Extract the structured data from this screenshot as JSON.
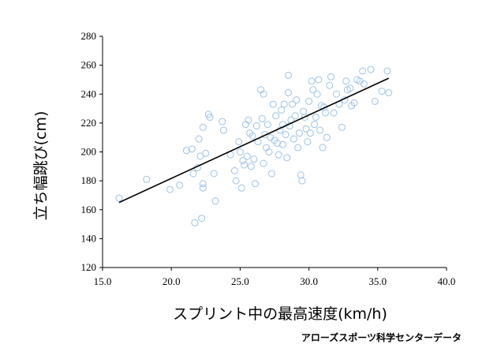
{
  "chart_data": {
    "type": "scatter",
    "title": "",
    "xlabel": "スプリント中の最高速度(km/h)",
    "ylabel": "立ち幅跳び(cm)",
    "source": "アローズスポーツ科学センターデータ",
    "xlim": [
      15.0,
      40.0
    ],
    "ylim": [
      120,
      280
    ],
    "x_ticks": [
      "15.0",
      "20.0",
      "25.0",
      "30.0",
      "35.0",
      "40.0"
    ],
    "y_ticks": [
      "120",
      "140",
      "160",
      "180",
      "200",
      "220",
      "240",
      "260",
      "280"
    ],
    "grid": false,
    "marker_color": "#9dc3e6",
    "trendline_color": "#000000",
    "trendline": {
      "x": [
        16.2,
        35.8
      ],
      "y": [
        165,
        251
      ]
    },
    "points": [
      [
        16.2,
        168
      ],
      [
        18.2,
        181
      ],
      [
        19.9,
        174
      ],
      [
        20.6,
        177
      ],
      [
        21.1,
        201
      ],
      [
        21.5,
        202
      ],
      [
        21.6,
        185
      ],
      [
        21.9,
        189
      ],
      [
        21.7,
        151
      ],
      [
        22.1,
        197
      ],
      [
        22.2,
        154
      ],
      [
        22.3,
        178
      ],
      [
        22.3,
        175
      ],
      [
        22.5,
        199
      ],
      [
        22.7,
        226
      ],
      [
        22.8,
        224
      ],
      [
        23.1,
        185
      ],
      [
        23.2,
        166
      ],
      [
        23.7,
        221
      ],
      [
        23.8,
        215
      ],
      [
        22.3,
        217
      ],
      [
        22.0,
        209
      ],
      [
        24.3,
        198
      ],
      [
        24.6,
        187
      ],
      [
        24.7,
        180
      ],
      [
        24.9,
        207
      ],
      [
        25.0,
        200
      ],
      [
        25.1,
        175
      ],
      [
        25.2,
        194
      ],
      [
        25.3,
        191
      ],
      [
        25.4,
        219
      ],
      [
        25.5,
        197
      ],
      [
        25.6,
        222
      ],
      [
        25.7,
        213
      ],
      [
        25.8,
        190
      ],
      [
        25.9,
        211
      ],
      [
        26.0,
        195
      ],
      [
        26.1,
        178
      ],
      [
        26.2,
        218
      ],
      [
        26.3,
        207
      ],
      [
        26.5,
        243
      ],
      [
        26.6,
        223
      ],
      [
        26.7,
        240
      ],
      [
        26.7,
        192
      ],
      [
        26.8,
        212
      ],
      [
        26.9,
        203
      ],
      [
        27.0,
        219
      ],
      [
        27.1,
        200
      ],
      [
        27.2,
        210
      ],
      [
        27.3,
        185
      ],
      [
        27.4,
        233
      ],
      [
        27.5,
        208
      ],
      [
        27.6,
        225
      ],
      [
        27.7,
        206
      ],
      [
        27.8,
        198
      ],
      [
        27.9,
        215
      ],
      [
        28.0,
        229
      ],
      [
        28.1,
        205
      ],
      [
        28.1,
        219
      ],
      [
        28.2,
        233
      ],
      [
        28.3,
        212
      ],
      [
        28.4,
        196
      ],
      [
        28.5,
        241
      ],
      [
        28.5,
        253
      ],
      [
        28.6,
        218
      ],
      [
        28.7,
        222
      ],
      [
        28.8,
        233
      ],
      [
        28.9,
        209
      ],
      [
        29.0,
        225
      ],
      [
        29.1,
        236
      ],
      [
        29.2,
        203
      ],
      [
        29.3,
        213
      ],
      [
        29.4,
        184
      ],
      [
        29.5,
        180
      ],
      [
        29.6,
        228
      ],
      [
        29.7,
        224
      ],
      [
        29.8,
        216
      ],
      [
        29.9,
        207
      ],
      [
        30.0,
        235
      ],
      [
        30.1,
        213
      ],
      [
        30.2,
        249
      ],
      [
        30.3,
        243
      ],
      [
        30.4,
        219
      ],
      [
        30.5,
        224
      ],
      [
        30.6,
        240
      ],
      [
        30.7,
        250
      ],
      [
        30.8,
        215
      ],
      [
        30.9,
        232
      ],
      [
        31.0,
        203
      ],
      [
        31.1,
        231
      ],
      [
        31.2,
        227
      ],
      [
        31.3,
        210
      ],
      [
        31.5,
        246
      ],
      [
        31.6,
        252
      ],
      [
        31.8,
        227
      ],
      [
        32.0,
        240
      ],
      [
        32.2,
        233
      ],
      [
        32.4,
        217
      ],
      [
        32.6,
        236
      ],
      [
        32.7,
        249
      ],
      [
        32.8,
        243
      ],
      [
        33.0,
        244
      ],
      [
        33.1,
        232
      ],
      [
        33.3,
        234
      ],
      [
        33.5,
        250
      ],
      [
        33.7,
        249
      ],
      [
        33.9,
        256
      ],
      [
        34.0,
        247
      ],
      [
        34.5,
        257
      ],
      [
        34.8,
        235
      ],
      [
        35.3,
        242
      ],
      [
        35.7,
        256
      ],
      [
        35.8,
        241
      ]
    ]
  }
}
